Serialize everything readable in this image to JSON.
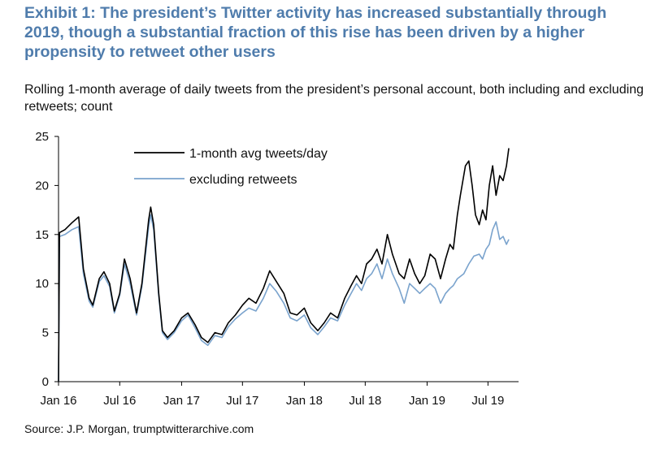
{
  "chart_data": {
    "type": "line",
    "title": "Exhibit 1: The president’s Twitter activity has increased substantially through 2019, though a substantial fraction of this rise has been driven by a higher propensity to retweet other users",
    "subtitle": "Rolling 1-month average of daily tweets from the president’s personal account, both including and excluding retweets; count",
    "source": "Source: J.P. Morgan, trumptwitterarchive.com",
    "xlabel": "",
    "ylabel": "",
    "ylim": [
      0,
      25
    ],
    "yticks": [
      0,
      5,
      10,
      15,
      20,
      25
    ],
    "xlim": [
      "2016-01-01",
      "2019-09-30"
    ],
    "xticks": [
      {
        "label": "Jan 16",
        "date": "2016-01-01"
      },
      {
        "label": "Jul 16",
        "date": "2016-07-01"
      },
      {
        "label": "Jan 17",
        "date": "2017-01-01"
      },
      {
        "label": "Jul 17",
        "date": "2017-07-01"
      },
      {
        "label": "Jan 18",
        "date": "2018-01-01"
      },
      {
        "label": "Jul 18",
        "date": "2018-07-01"
      },
      {
        "label": "Jan 19",
        "date": "2019-01-01"
      },
      {
        "label": "Jul 19",
        "date": "2019-07-01"
      }
    ],
    "legend_position": "top-center",
    "series": [
      {
        "name": "1-month avg tweets/day",
        "color": "#000000",
        "points": [
          [
            "2016-01-01",
            0
          ],
          [
            "2016-01-04",
            15.2
          ],
          [
            "2016-01-20",
            15.5
          ],
          [
            "2016-02-10",
            16.2
          ],
          [
            "2016-03-01",
            16.8
          ],
          [
            "2016-03-15",
            11.5
          ],
          [
            "2016-04-01",
            8.5
          ],
          [
            "2016-04-12",
            7.8
          ],
          [
            "2016-05-01",
            10.5
          ],
          [
            "2016-05-15",
            11.2
          ],
          [
            "2016-06-01",
            10.0
          ],
          [
            "2016-06-15",
            7.2
          ],
          [
            "2016-07-01",
            9.0
          ],
          [
            "2016-07-15",
            12.5
          ],
          [
            "2016-08-01",
            10.5
          ],
          [
            "2016-08-20",
            7.0
          ],
          [
            "2016-09-05",
            10.0
          ],
          [
            "2016-09-25",
            16.5
          ],
          [
            "2016-10-01",
            17.8
          ],
          [
            "2016-10-10",
            16.0
          ],
          [
            "2016-10-25",
            9.0
          ],
          [
            "2016-11-05",
            5.2
          ],
          [
            "2016-11-20",
            4.5
          ],
          [
            "2016-12-10",
            5.2
          ],
          [
            "2017-01-01",
            6.5
          ],
          [
            "2017-01-20",
            7.0
          ],
          [
            "2017-02-10",
            5.8
          ],
          [
            "2017-03-01",
            4.5
          ],
          [
            "2017-03-20",
            4.0
          ],
          [
            "2017-04-10",
            5.0
          ],
          [
            "2017-05-01",
            4.8
          ],
          [
            "2017-05-20",
            6.0
          ],
          [
            "2017-06-10",
            6.8
          ],
          [
            "2017-07-01",
            7.8
          ],
          [
            "2017-07-20",
            8.5
          ],
          [
            "2017-08-10",
            8.0
          ],
          [
            "2017-09-01",
            9.5
          ],
          [
            "2017-09-20",
            11.3
          ],
          [
            "2017-10-10",
            10.2
          ],
          [
            "2017-11-01",
            9.0
          ],
          [
            "2017-11-20",
            7.0
          ],
          [
            "2017-12-10",
            6.8
          ],
          [
            "2018-01-01",
            7.5
          ],
          [
            "2018-01-20",
            6.0
          ],
          [
            "2018-02-10",
            5.2
          ],
          [
            "2018-03-01",
            6.0
          ],
          [
            "2018-03-20",
            7.0
          ],
          [
            "2018-04-10",
            6.5
          ],
          [
            "2018-05-01",
            8.5
          ],
          [
            "2018-05-20",
            9.8
          ],
          [
            "2018-06-05",
            10.8
          ],
          [
            "2018-06-20",
            10.0
          ],
          [
            "2018-07-05",
            12.0
          ],
          [
            "2018-07-20",
            12.5
          ],
          [
            "2018-08-05",
            13.5
          ],
          [
            "2018-08-20",
            12.0
          ],
          [
            "2018-09-05",
            15.0
          ],
          [
            "2018-09-20",
            13.0
          ],
          [
            "2018-10-10",
            11.0
          ],
          [
            "2018-10-25",
            10.5
          ],
          [
            "2018-11-10",
            12.5
          ],
          [
            "2018-11-25",
            11.0
          ],
          [
            "2018-12-10",
            10.0
          ],
          [
            "2018-12-25",
            10.8
          ],
          [
            "2019-01-10",
            13.0
          ],
          [
            "2019-01-25",
            12.5
          ],
          [
            "2019-02-10",
            10.5
          ],
          [
            "2019-02-25",
            12.5
          ],
          [
            "2019-03-10",
            14.0
          ],
          [
            "2019-03-20",
            13.5
          ],
          [
            "2019-04-01",
            17.0
          ],
          [
            "2019-04-10",
            19.0
          ],
          [
            "2019-04-25",
            22.0
          ],
          [
            "2019-05-05",
            22.5
          ],
          [
            "2019-05-15",
            20.0
          ],
          [
            "2019-05-25",
            17.0
          ],
          [
            "2019-06-05",
            16.0
          ],
          [
            "2019-06-15",
            17.5
          ],
          [
            "2019-06-25",
            16.5
          ],
          [
            "2019-07-05",
            20.0
          ],
          [
            "2019-07-15",
            22.0
          ],
          [
            "2019-07-25",
            19.0
          ],
          [
            "2019-08-05",
            21.0
          ],
          [
            "2019-08-15",
            20.5
          ],
          [
            "2019-08-25",
            22.0
          ],
          [
            "2019-09-01",
            23.8
          ]
        ]
      },
      {
        "name": "excluding retweets",
        "color": "#7aa3cd",
        "points": [
          [
            "2016-01-01",
            0
          ],
          [
            "2016-01-04",
            14.8
          ],
          [
            "2016-01-20",
            15.0
          ],
          [
            "2016-02-10",
            15.5
          ],
          [
            "2016-03-01",
            15.8
          ],
          [
            "2016-03-15",
            11.0
          ],
          [
            "2016-04-01",
            8.2
          ],
          [
            "2016-04-12",
            7.6
          ],
          [
            "2016-05-01",
            10.2
          ],
          [
            "2016-05-15",
            10.8
          ],
          [
            "2016-06-01",
            9.7
          ],
          [
            "2016-06-15",
            7.0
          ],
          [
            "2016-07-01",
            8.8
          ],
          [
            "2016-07-15",
            12.0
          ],
          [
            "2016-08-01",
            10.0
          ],
          [
            "2016-08-20",
            6.8
          ],
          [
            "2016-09-05",
            9.7
          ],
          [
            "2016-09-25",
            15.8
          ],
          [
            "2016-10-01",
            17.0
          ],
          [
            "2016-10-10",
            15.5
          ],
          [
            "2016-10-25",
            8.7
          ],
          [
            "2016-11-05",
            5.0
          ],
          [
            "2016-11-20",
            4.3
          ],
          [
            "2016-12-10",
            5.0
          ],
          [
            "2017-01-01",
            6.2
          ],
          [
            "2017-01-20",
            6.8
          ],
          [
            "2017-02-10",
            5.5
          ],
          [
            "2017-03-01",
            4.2
          ],
          [
            "2017-03-20",
            3.7
          ],
          [
            "2017-04-10",
            4.7
          ],
          [
            "2017-05-01",
            4.5
          ],
          [
            "2017-05-20",
            5.6
          ],
          [
            "2017-06-10",
            6.4
          ],
          [
            "2017-07-01",
            7.0
          ],
          [
            "2017-07-20",
            7.5
          ],
          [
            "2017-08-10",
            7.2
          ],
          [
            "2017-09-01",
            8.5
          ],
          [
            "2017-09-20",
            10.0
          ],
          [
            "2017-10-10",
            9.2
          ],
          [
            "2017-11-01",
            8.0
          ],
          [
            "2017-11-20",
            6.5
          ],
          [
            "2017-12-10",
            6.2
          ],
          [
            "2018-01-01",
            6.8
          ],
          [
            "2018-01-20",
            5.5
          ],
          [
            "2018-02-10",
            4.8
          ],
          [
            "2018-03-01",
            5.6
          ],
          [
            "2018-03-20",
            6.5
          ],
          [
            "2018-04-10",
            6.2
          ],
          [
            "2018-05-01",
            7.8
          ],
          [
            "2018-05-20",
            9.0
          ],
          [
            "2018-06-05",
            10.0
          ],
          [
            "2018-06-20",
            9.3
          ],
          [
            "2018-07-05",
            10.5
          ],
          [
            "2018-07-20",
            11.0
          ],
          [
            "2018-08-05",
            12.0
          ],
          [
            "2018-08-20",
            10.5
          ],
          [
            "2018-09-05",
            12.5
          ],
          [
            "2018-09-20",
            11.0
          ],
          [
            "2018-10-10",
            9.5
          ],
          [
            "2018-10-25",
            8.0
          ],
          [
            "2018-11-10",
            10.0
          ],
          [
            "2018-11-25",
            9.5
          ],
          [
            "2018-12-10",
            9.0
          ],
          [
            "2018-12-25",
            9.5
          ],
          [
            "2019-01-10",
            10.0
          ],
          [
            "2019-01-25",
            9.5
          ],
          [
            "2019-02-10",
            8.0
          ],
          [
            "2019-02-25",
            9.0
          ],
          [
            "2019-03-10",
            9.5
          ],
          [
            "2019-03-20",
            9.8
          ],
          [
            "2019-04-01",
            10.5
          ],
          [
            "2019-04-20",
            11.0
          ],
          [
            "2019-05-05",
            12.0
          ],
          [
            "2019-05-20",
            12.8
          ],
          [
            "2019-06-05",
            13.0
          ],
          [
            "2019-06-15",
            12.5
          ],
          [
            "2019-06-25",
            13.5
          ],
          [
            "2019-07-05",
            14.0
          ],
          [
            "2019-07-15",
            15.5
          ],
          [
            "2019-07-25",
            16.3
          ],
          [
            "2019-08-05",
            14.5
          ],
          [
            "2019-08-15",
            14.8
          ],
          [
            "2019-08-25",
            14.0
          ],
          [
            "2019-09-01",
            14.5
          ]
        ]
      }
    ]
  }
}
